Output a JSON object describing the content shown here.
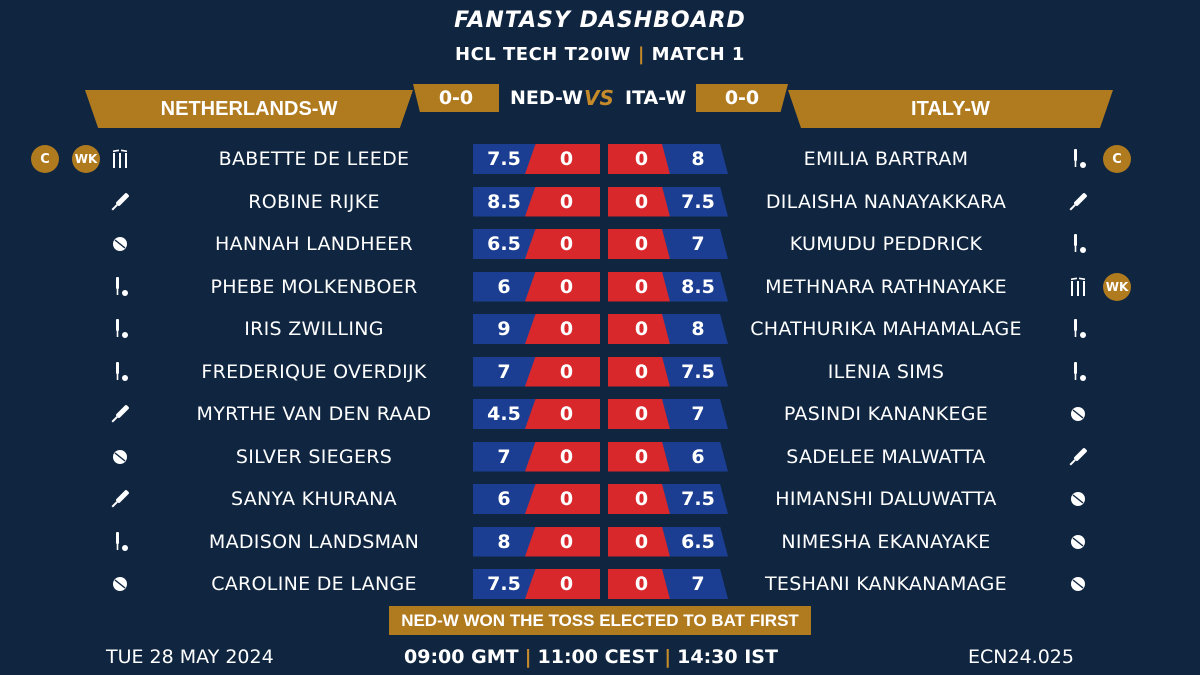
{
  "header": {
    "title": "FANTASY DASHBOARD",
    "series": "HCL TECH T20IW",
    "match": "MATCH 1"
  },
  "teams": {
    "left": {
      "name": "NETHERLANDS-W",
      "abbr": "NED-W",
      "score": "0-0"
    },
    "right": {
      "name": "ITALY-W",
      "abbr": "ITA-W",
      "score": "0-0"
    },
    "vs": "VS"
  },
  "badges": {
    "captain": "C",
    "keeper": "WK"
  },
  "left_players": [
    {
      "name": "BABETTE DE LEEDE",
      "credit": "7.5",
      "points": "0",
      "role": "wicket-keeper",
      "badges": [
        "C",
        "WK"
      ]
    },
    {
      "name": "ROBINE RIJKE",
      "credit": "8.5",
      "points": "0",
      "role": "batter",
      "badges": []
    },
    {
      "name": "HANNAH LANDHEER",
      "credit": "6.5",
      "points": "0",
      "role": "bowler",
      "badges": []
    },
    {
      "name": "PHEBE MOLKENBOER",
      "credit": "6",
      "points": "0",
      "role": "all-rounder",
      "badges": []
    },
    {
      "name": "IRIS ZWILLING",
      "credit": "9",
      "points": "0",
      "role": "all-rounder",
      "badges": []
    },
    {
      "name": "FREDERIQUE OVERDIJK",
      "credit": "7",
      "points": "0",
      "role": "all-rounder",
      "badges": []
    },
    {
      "name": "MYRTHE VAN DEN RAAD",
      "credit": "4.5",
      "points": "0",
      "role": "batter",
      "badges": []
    },
    {
      "name": "SILVER SIEGERS",
      "credit": "7",
      "points": "0",
      "role": "bowler",
      "badges": []
    },
    {
      "name": "SANYA KHURANA",
      "credit": "6",
      "points": "0",
      "role": "batter",
      "badges": []
    },
    {
      "name": "MADISON LANDSMAN",
      "credit": "8",
      "points": "0",
      "role": "all-rounder",
      "badges": []
    },
    {
      "name": "CAROLINE DE LANGE",
      "credit": "7.5",
      "points": "0",
      "role": "bowler",
      "badges": []
    }
  ],
  "right_players": [
    {
      "name": "EMILIA BARTRAM",
      "credit": "8",
      "points": "0",
      "role": "all-rounder",
      "badges": [
        "C"
      ]
    },
    {
      "name": "DILAISHA NANAYAKKARA",
      "credit": "7.5",
      "points": "0",
      "role": "batter",
      "badges": []
    },
    {
      "name": "KUMUDU PEDDRICK",
      "credit": "7",
      "points": "0",
      "role": "all-rounder",
      "badges": []
    },
    {
      "name": "METHNARA RATHNAYAKE",
      "credit": "8.5",
      "points": "0",
      "role": "wicket-keeper",
      "badges": [
        "WK"
      ]
    },
    {
      "name": "CHATHURIKA MAHAMALAGE",
      "credit": "8",
      "points": "0",
      "role": "all-rounder",
      "badges": []
    },
    {
      "name": "ILENIA SIMS",
      "credit": "7.5",
      "points": "0",
      "role": "all-rounder",
      "badges": []
    },
    {
      "name": "PASINDI KANANKEGE",
      "credit": "7",
      "points": "0",
      "role": "bowler",
      "badges": []
    },
    {
      "name": "SADELEE MALWATTA",
      "credit": "6",
      "points": "0",
      "role": "batter",
      "badges": []
    },
    {
      "name": "HIMANSHI DALUWATTA",
      "credit": "7.5",
      "points": "0",
      "role": "bowler",
      "badges": []
    },
    {
      "name": "NIMESHA EKANAYAKE",
      "credit": "6.5",
      "points": "0",
      "role": "bowler",
      "badges": []
    },
    {
      "name": "TESHANI KANKANAMAGE",
      "credit": "7",
      "points": "0",
      "role": "bowler",
      "badges": []
    }
  ],
  "toss": "NED-W WON THE TOSS ELECTED TO BAT FIRST",
  "footer": {
    "date": "TUE 28 MAY 2024",
    "time_gmt": "09:00 GMT",
    "time_cest": "11:00 CEST",
    "time_ist": "14:30 IST",
    "code": "ECN24.025"
  },
  "colors": {
    "background": "#0f2540",
    "gold": "#b07a1f",
    "credit_blue": "#1b3e92",
    "points_red": "#d8282c"
  }
}
